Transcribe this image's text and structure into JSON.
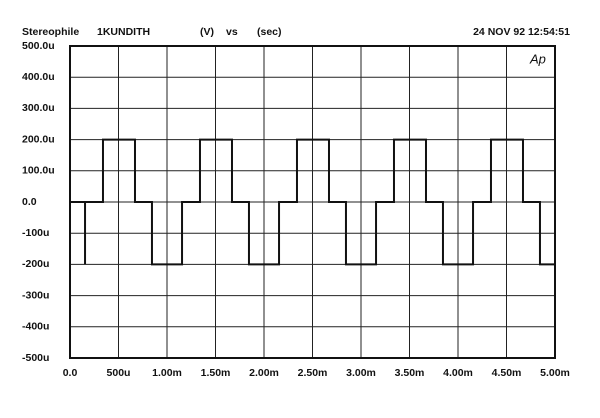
{
  "chart_data": {
    "type": "line",
    "title": "Stereophile",
    "subtitle": "1KUNDITH",
    "y_label": "(V)",
    "vs": "vs",
    "x_label": "(sec)",
    "timestamp": "24 NOV 92 12:54:51",
    "logo": "Ap",
    "grid": true,
    "color": "#111111",
    "xlim": [
      0,
      0.005
    ],
    "ylim": [
      -0.0005,
      0.0005
    ],
    "xticks": [
      {
        "value": 0,
        "label": "0.0"
      },
      {
        "value": 0.0005,
        "label": "500u"
      },
      {
        "value": 0.001,
        "label": "1.00m"
      },
      {
        "value": 0.0015,
        "label": "1.50m"
      },
      {
        "value": 0.002,
        "label": "2.00m"
      },
      {
        "value": 0.0025,
        "label": "2.50m"
      },
      {
        "value": 0.003,
        "label": "3.00m"
      },
      {
        "value": 0.0035,
        "label": "3.50m"
      },
      {
        "value": 0.004,
        "label": "4.00m"
      },
      {
        "value": 0.0045,
        "label": "4.50m"
      },
      {
        "value": 0.005,
        "label": "5.00m"
      }
    ],
    "yticks": [
      {
        "value": -0.0005,
        "label": "-500u"
      },
      {
        "value": -0.0004,
        "label": "-400u"
      },
      {
        "value": -0.0003,
        "label": "-300u"
      },
      {
        "value": -0.0002,
        "label": "-200u"
      },
      {
        "value": -0.0001,
        "label": "-100u"
      },
      {
        "value": 0,
        "label": "0.0"
      },
      {
        "value": 0.0001,
        "label": "100.0u"
      },
      {
        "value": 0.0002,
        "label": "200.0u"
      },
      {
        "value": 0.0003,
        "label": "300.0u"
      },
      {
        "value": 0.0004,
        "label": "400.0u"
      },
      {
        "value": 0.0005,
        "label": "500.0u"
      }
    ],
    "x": [
      0,
      0.000155,
      0.000155,
      0.000155,
      0.00034,
      0.00034,
      0.00067,
      0.00067,
      0.000845,
      0.000845,
      0.001155,
      0.001155,
      0.00134,
      0.00134,
      0.00167,
      0.00167,
      0.001845,
      0.001845,
      0.002155,
      0.002155,
      0.00234,
      0.00234,
      0.00267,
      0.00267,
      0.002845,
      0.002845,
      0.003155,
      0.003155,
      0.00334,
      0.00334,
      0.00367,
      0.00367,
      0.003845,
      0.003845,
      0.004155,
      0.004155,
      0.00434,
      0.00434,
      0.00467,
      0.00467,
      0.004845,
      0.004845,
      0.005
    ],
    "values": [
      0,
      0,
      -0.0002,
      0,
      0,
      0.0002,
      0.0002,
      0,
      0,
      -0.0002,
      -0.0002,
      0,
      0,
      0.0002,
      0.0002,
      0,
      0,
      -0.0002,
      -0.0002,
      0,
      0,
      0.0002,
      0.0002,
      0,
      0,
      -0.0002,
      -0.0002,
      0,
      0,
      0.0002,
      0.0002,
      0,
      0,
      -0.0002,
      -0.0002,
      0,
      0,
      0.0002,
      0.0002,
      0,
      0,
      -0.0002,
      -0.0002
    ]
  }
}
